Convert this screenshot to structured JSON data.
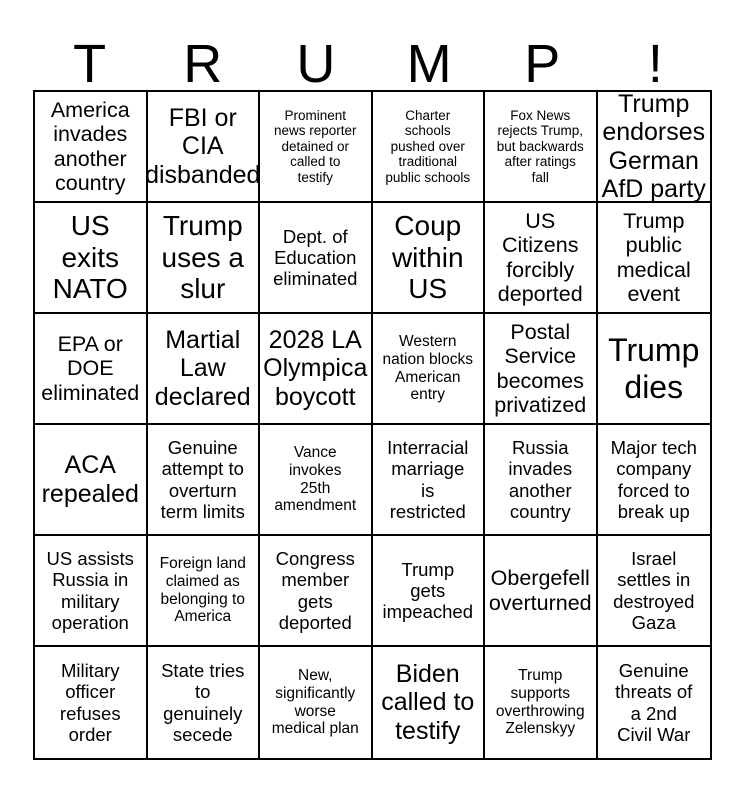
{
  "colors": {
    "background": "#ffffff",
    "grid_line": "#000000",
    "text": "#000000"
  },
  "title": {
    "text": "TRUMP!",
    "letters": [
      "T",
      "R",
      "U",
      "M",
      "P",
      "!"
    ]
  },
  "grid": {
    "rows": [
      {
        "cells": [
          {
            "text": "America\ninvades\nanother\ncountry"
          },
          {
            "text": "FBI or\nCIA\ndisbanded"
          },
          {
            "text": "Prominent\nnews reporter\ndetained or\ncalled to\ntestify"
          },
          {
            "text": "Charter\nschools\npushed over\ntraditional\npublic schools"
          },
          {
            "text": "Fox News\nrejects Trump,\nbut backwards\nafter ratings\nfall"
          },
          {
            "text": "Trump\nendorses\nGerman\nAfD party"
          }
        ]
      },
      {
        "cells": [
          {
            "text": "US\nexits\nNATO"
          },
          {
            "text": "Trump\nuses a\nslur"
          },
          {
            "text": "Dept. of\nEducation\neliminated"
          },
          {
            "text": "Coup\nwithin\nUS"
          },
          {
            "text": "US\nCitizens\nforcibly\ndeported"
          },
          {
            "text": "Trump\npublic\nmedical\nevent"
          }
        ]
      },
      {
        "cells": [
          {
            "text": "EPA or\nDOE\neliminated"
          },
          {
            "text": "Martial\nLaw\ndeclared"
          },
          {
            "text": "2028 LA\nOlympica\nboycott"
          },
          {
            "text": "Western\nnation blocks\nAmerican\nentry"
          },
          {
            "text": "Postal\nService\nbecomes\nprivatized"
          },
          {
            "text": "Trump\ndies"
          }
        ]
      },
      {
        "cells": [
          {
            "text": "ACA\nrepealed"
          },
          {
            "text": "Genuine\nattempt to\noverturn\nterm limits"
          },
          {
            "text": "Vance\ninvokes\n25th\namendment"
          },
          {
            "text": "Interracial\nmarriage\nis\nrestricted"
          },
          {
            "text": "Russia\ninvades\nanother\ncountry"
          },
          {
            "text": "Major tech\ncompany\nforced to\nbreak up"
          }
        ]
      },
      {
        "cells": [
          {
            "text": "US assists\nRussia in\nmilitary\noperation"
          },
          {
            "text": "Foreign land\nclaimed as\nbelonging to\nAmerica"
          },
          {
            "text": "Congress\nmember\ngets\ndeported"
          },
          {
            "text": "Trump\ngets\nimpeached"
          },
          {
            "text": "Obergefell\noverturned"
          },
          {
            "text": "Israel\nsettles in\ndestroyed\nGaza"
          }
        ]
      },
      {
        "cells": [
          {
            "text": "Military\nofficer\nrefuses\norder"
          },
          {
            "text": "State tries\nto\ngenuinely\nsecede"
          },
          {
            "text": "New,\nsignificantly\nworse\nmedical plan"
          },
          {
            "text": "Biden\ncalled to\ntestify"
          },
          {
            "text": "Trump\nsupports\noverthrowing\nZelenskyy"
          },
          {
            "text": "Genuine\nthreats of\na 2nd\nCivil War"
          }
        ]
      }
    ]
  }
}
